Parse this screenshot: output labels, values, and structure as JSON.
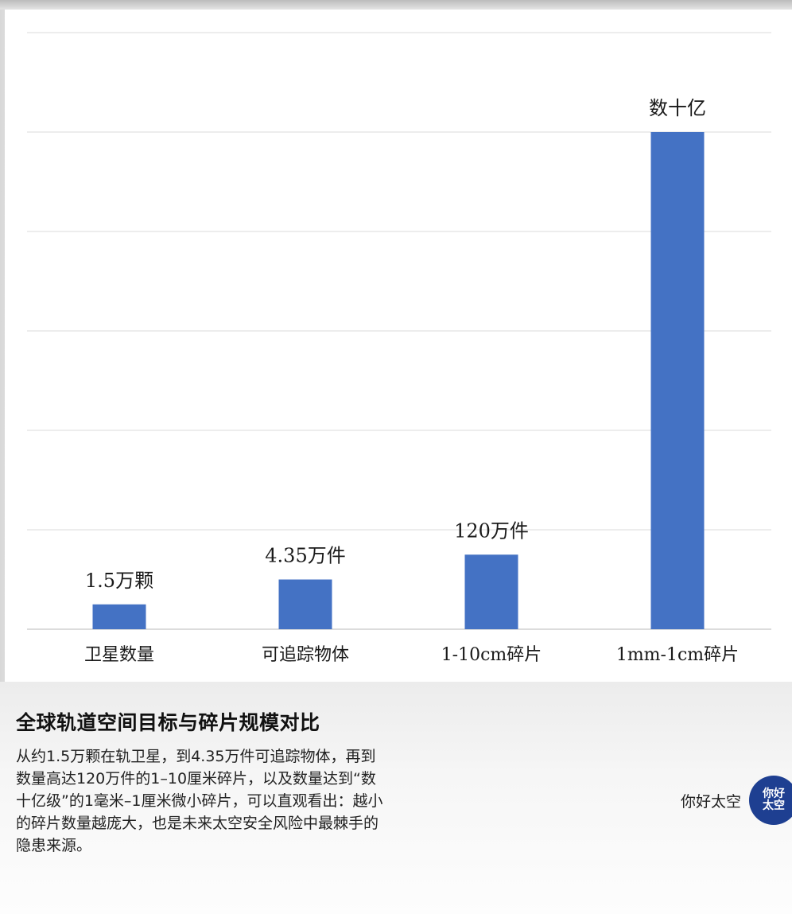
{
  "chart_data": {
    "type": "bar",
    "categories": [
      "卫星数量",
      "可追踪物体",
      "1-10cm碎片",
      "1mm-1cm碎片"
    ],
    "data_labels": [
      "1.5万颗",
      "4.35万件",
      "120万件",
      "数十亿"
    ],
    "values": [
      0.25,
      0.5,
      0.75,
      5.0
    ],
    "ylim": [
      0,
      6
    ],
    "y_ticks_visible": false,
    "grid": true,
    "color": "#4472C4"
  },
  "caption": {
    "title": "全球轨道空间目标与碎片规模对比",
    "body": "从约1.5万颗在轨卫星，到4.35万件可追踪物体，再到数量高达120万件的1–10厘米碎片，以及数量达到“数十亿级”的1毫米–1厘米微小碎片，可以直观看出：越小的碎片数量越庞大，也是未来太空安全风险中最棘手的隐患来源。"
  },
  "brand": {
    "name": "你好太空",
    "logo_text": "你好\n太空",
    "logo_color": "#1E3F91"
  }
}
